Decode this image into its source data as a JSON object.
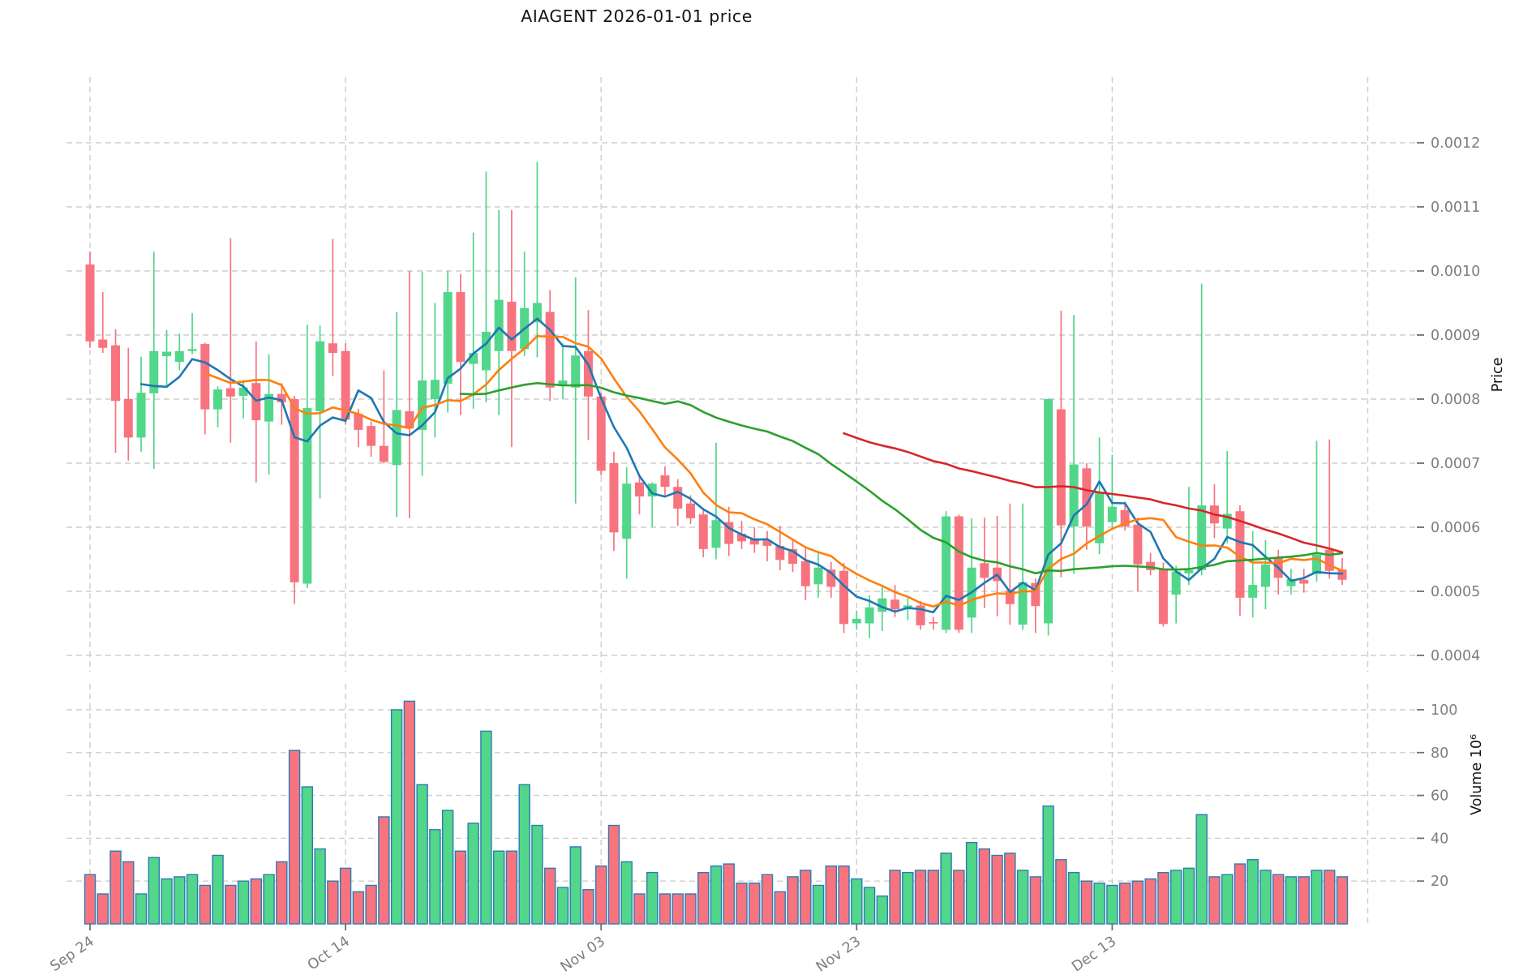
{
  "title": "AIAGENT  2026-01-01  price",
  "chart_data": {
    "type": "candlestick",
    "symbol": "AIAGENT",
    "as_of_date": "2026-01-01",
    "price_unit": 0.0001,
    "volume_unit": 1000000,
    "price_axis": {
      "label": "Price",
      "tick_labels": [
        "0.0004",
        "0.0005",
        "0.0006",
        "0.0007",
        "0.0008",
        "0.0009",
        "0.0010",
        "0.0011",
        "0.0012"
      ],
      "ticks": [
        4,
        5,
        6,
        7,
        8,
        9,
        10,
        11,
        12
      ],
      "range": [
        3.85,
        13.03
      ]
    },
    "volume_axis": {
      "label": "Volume  10⁶",
      "tick_labels": [
        "20",
        "40",
        "60",
        "80",
        "100"
      ],
      "ticks": [
        20,
        40,
        60,
        80,
        100
      ],
      "range": [
        0,
        112
      ]
    },
    "x_axis": {
      "gridlines": [
        {
          "day": 0,
          "label": "Sep 24"
        },
        {
          "day": 20,
          "label": "Oct 14"
        },
        {
          "day": 40,
          "label": "Nov 03"
        },
        {
          "day": 60,
          "label": "Nov 23"
        },
        {
          "day": 80,
          "label": "Dec 13"
        },
        {
          "day": 100,
          "label": ""
        }
      ],
      "grid": true
    },
    "moving_averages": [
      {
        "name": "ma-5",
        "window": 5,
        "color": "#1f77b4"
      },
      {
        "name": "ma-10",
        "window": 10,
        "color": "#ff7f0e"
      },
      {
        "name": "ma-30",
        "window": 30,
        "color": "#2ca02c"
      },
      {
        "name": "ma-60",
        "window": 60,
        "color": "#d62728"
      }
    ],
    "colors": {
      "up": "#52d689",
      "down": "#f7747f",
      "volume_edge": "#2b7cb3",
      "grid": "#cdcdcd",
      "tick_mark": "#6e6e6e",
      "tick_text": "#7e7e7e",
      "title_text": "#151515"
    },
    "candles": [
      [
        "Sep 24",
        10.1,
        10.3,
        8.8,
        8.9,
        23
      ],
      [
        "Sep 25",
        8.93,
        9.67,
        8.72,
        8.8,
        14
      ],
      [
        "Sep 26",
        8.84,
        9.09,
        7.16,
        7.97,
        34
      ],
      [
        "Sep 27",
        8.0,
        8.8,
        7.04,
        7.4,
        29
      ],
      [
        "Sep 28",
        7.4,
        8.66,
        7.18,
        8.1,
        14
      ],
      [
        "Sep 29",
        8.09,
        10.3,
        6.91,
        8.75,
        31
      ],
      [
        "Sep 30",
        8.67,
        9.08,
        8.2,
        8.74,
        21
      ],
      [
        "Oct 01",
        8.58,
        9.02,
        8.45,
        8.75,
        22
      ],
      [
        "Oct 02",
        8.75,
        9.34,
        8.7,
        8.78,
        23
      ],
      [
        "Oct 03",
        8.86,
        8.88,
        7.45,
        7.84,
        18
      ],
      [
        "Oct 04",
        7.84,
        8.2,
        7.56,
        8.15,
        32
      ],
      [
        "Oct 05",
        8.17,
        10.51,
        7.32,
        8.04,
        18
      ],
      [
        "Oct 06",
        8.05,
        8.3,
        7.7,
        8.18,
        20
      ],
      [
        "Oct 07",
        8.25,
        8.9,
        6.7,
        7.67,
        21
      ],
      [
        "Oct 08",
        7.65,
        8.7,
        6.82,
        8.08,
        23
      ],
      [
        "Oct 09",
        8.08,
        8.25,
        7.6,
        7.95,
        29
      ],
      [
        "Oct 10",
        8.0,
        8.05,
        4.8,
        5.14,
        81
      ],
      [
        "Oct 11",
        5.12,
        9.16,
        5.05,
        7.86,
        64
      ],
      [
        "Oct 12",
        7.81,
        9.15,
        6.45,
        8.9,
        35
      ],
      [
        "Oct 13",
        8.87,
        10.5,
        8.36,
        8.72,
        20
      ],
      [
        "Oct 14",
        8.75,
        8.87,
        7.6,
        7.68,
        26
      ],
      [
        "Oct 15",
        7.77,
        7.85,
        7.25,
        7.52,
        15
      ],
      [
        "Oct 16",
        7.58,
        7.65,
        7.1,
        7.27,
        18
      ],
      [
        "Oct 17",
        7.27,
        8.45,
        7.0,
        7.02,
        50
      ],
      [
        "Oct 18",
        6.97,
        9.36,
        6.16,
        7.83,
        100
      ],
      [
        "Oct 19",
        7.81,
        10.0,
        6.14,
        7.54,
        104
      ],
      [
        "Oct 20",
        7.52,
        9.99,
        6.8,
        8.29,
        65
      ],
      [
        "Oct 21",
        8.0,
        9.5,
        7.4,
        8.3,
        44
      ],
      [
        "Oct 22",
        8.24,
        10.0,
        7.79,
        9.67,
        53
      ],
      [
        "Oct 23",
        9.67,
        9.95,
        7.75,
        8.58,
        34
      ],
      [
        "Oct 24",
        8.55,
        10.6,
        7.85,
        8.72,
        47
      ],
      [
        "Oct 25",
        8.45,
        11.55,
        7.95,
        9.05,
        90
      ],
      [
        "Oct 26",
        8.75,
        10.95,
        7.75,
        9.55,
        34
      ],
      [
        "Oct 27",
        9.52,
        10.95,
        7.25,
        8.75,
        34
      ],
      [
        "Oct 28",
        8.78,
        10.3,
        8.67,
        9.42,
        65
      ],
      [
        "Oct 29",
        9.2,
        11.7,
        8.65,
        9.5,
        46
      ],
      [
        "Oct 30",
        9.36,
        9.7,
        7.97,
        8.18,
        26
      ],
      [
        "Oct 31",
        8.2,
        8.87,
        8.0,
        8.29,
        17
      ],
      [
        "Nov 01",
        8.18,
        9.9,
        6.37,
        8.68,
        36
      ],
      [
        "Nov 02",
        8.75,
        9.39,
        7.36,
        8.04,
        16
      ],
      [
        "Nov 03",
        8.04,
        8.1,
        6.81,
        6.88,
        27
      ],
      [
        "Nov 04",
        7.0,
        7.18,
        5.63,
        5.92,
        46
      ],
      [
        "Nov 05",
        5.82,
        6.94,
        5.2,
        6.68,
        29
      ],
      [
        "Nov 06",
        6.7,
        6.8,
        6.2,
        6.48,
        14
      ],
      [
        "Nov 07",
        6.48,
        6.7,
        6.0,
        6.68,
        24
      ],
      [
        "Nov 08",
        6.81,
        6.95,
        6.5,
        6.63,
        14
      ],
      [
        "Nov 09",
        6.63,
        6.75,
        6.02,
        6.29,
        14
      ],
      [
        "Nov 10",
        6.37,
        6.5,
        6.05,
        6.14,
        14
      ],
      [
        "Nov 11",
        6.2,
        6.3,
        5.53,
        5.66,
        24
      ],
      [
        "Nov 12",
        5.68,
        7.32,
        5.5,
        6.11,
        27
      ],
      [
        "Nov 13",
        6.08,
        6.32,
        5.55,
        5.74,
        28
      ],
      [
        "Nov 14",
        5.9,
        6.1,
        5.66,
        5.78,
        19
      ],
      [
        "Nov 15",
        5.83,
        6.0,
        5.6,
        5.73,
        19
      ],
      [
        "Nov 16",
        5.8,
        5.94,
        5.47,
        5.71,
        23
      ],
      [
        "Nov 17",
        5.71,
        6.02,
        5.33,
        5.49,
        15
      ],
      [
        "Nov 18",
        5.66,
        5.8,
        5.3,
        5.43,
        22
      ],
      [
        "Nov 19",
        5.47,
        5.68,
        4.86,
        5.08,
        25
      ],
      [
        "Nov 20",
        5.11,
        5.6,
        4.9,
        5.37,
        18
      ],
      [
        "Nov 21",
        5.34,
        5.46,
        4.9,
        5.07,
        27
      ],
      [
        "Nov 22",
        5.32,
        5.44,
        4.35,
        4.49,
        27
      ],
      [
        "Nov 23",
        4.5,
        4.7,
        4.4,
        4.57,
        21
      ],
      [
        "Nov 24",
        4.5,
        4.94,
        4.27,
        4.75,
        17
      ],
      [
        "Nov 25",
        4.68,
        5.07,
        4.38,
        4.89,
        13
      ],
      [
        "Nov 26",
        4.87,
        5.1,
        4.6,
        4.72,
        25
      ],
      [
        "Nov 27",
        4.72,
        4.92,
        4.55,
        4.78,
        24
      ],
      [
        "Nov 28",
        4.78,
        4.85,
        4.4,
        4.47,
        25
      ],
      [
        "Nov 29",
        4.52,
        4.6,
        4.4,
        4.51,
        25
      ],
      [
        "Nov 30",
        4.4,
        6.25,
        4.35,
        6.17,
        33
      ],
      [
        "Dec 01",
        6.17,
        6.2,
        4.35,
        4.4,
        25
      ],
      [
        "Dec 02",
        4.59,
        6.14,
        4.35,
        5.37,
        38
      ],
      [
        "Dec 03",
        5.44,
        6.15,
        4.74,
        5.21,
        35
      ],
      [
        "Dec 04",
        5.37,
        6.18,
        4.61,
        5.16,
        32
      ],
      [
        "Dec 05",
        5.01,
        6.37,
        4.48,
        4.8,
        33
      ],
      [
        "Dec 06",
        4.48,
        6.37,
        4.4,
        5.14,
        25
      ],
      [
        "Dec 07",
        5.13,
        5.2,
        4.35,
        4.77,
        22
      ],
      [
        "Dec 08",
        4.5,
        8.01,
        4.31,
        8.0,
        55
      ],
      [
        "Dec 09",
        7.84,
        9.38,
        5.22,
        6.03,
        30
      ],
      [
        "Dec 10",
        6.01,
        9.31,
        5.27,
        6.98,
        24
      ],
      [
        "Dec 11",
        6.92,
        7.0,
        5.65,
        6.01,
        20
      ],
      [
        "Dec 12",
        5.75,
        7.4,
        5.58,
        6.55,
        19
      ],
      [
        "Dec 13",
        6.08,
        7.13,
        6.0,
        6.32,
        18
      ],
      [
        "Dec 14",
        6.27,
        6.4,
        5.95,
        6.01,
        19
      ],
      [
        "Dec 15",
        6.04,
        6.15,
        5.0,
        5.42,
        20
      ],
      [
        "Dec 16",
        5.46,
        5.6,
        5.25,
        5.33,
        21
      ],
      [
        "Dec 17",
        5.35,
        5.45,
        4.45,
        4.49,
        24
      ],
      [
        "Dec 18",
        4.95,
        5.4,
        4.5,
        5.31,
        25
      ],
      [
        "Dec 19",
        5.28,
        6.63,
        5.1,
        5.33,
        26
      ],
      [
        "Dec 20",
        5.33,
        9.8,
        5.25,
        6.34,
        51
      ],
      [
        "Dec 21",
        6.34,
        6.67,
        5.83,
        6.06,
        22
      ],
      [
        "Dec 22",
        5.98,
        7.19,
        5.75,
        6.21,
        23
      ],
      [
        "Dec 23",
        6.25,
        6.34,
        4.62,
        4.9,
        28
      ],
      [
        "Dec 24",
        4.9,
        5.94,
        4.59,
        5.1,
        30
      ],
      [
        "Dec 25",
        5.07,
        5.8,
        4.72,
        5.42,
        25
      ],
      [
        "Dec 26",
        5.53,
        5.65,
        4.95,
        5.21,
        23
      ],
      [
        "Dec 27",
        5.08,
        5.35,
        4.95,
        5.19,
        22
      ],
      [
        "Dec 28",
        5.18,
        5.35,
        4.98,
        5.12,
        22
      ],
      [
        "Dec 29",
        5.27,
        7.35,
        5.15,
        5.57,
        25
      ],
      [
        "Dec 30",
        5.65,
        7.37,
        5.2,
        5.32,
        25
      ],
      [
        "Dec 31",
        5.34,
        5.52,
        5.1,
        5.18,
        22
      ]
    ]
  }
}
